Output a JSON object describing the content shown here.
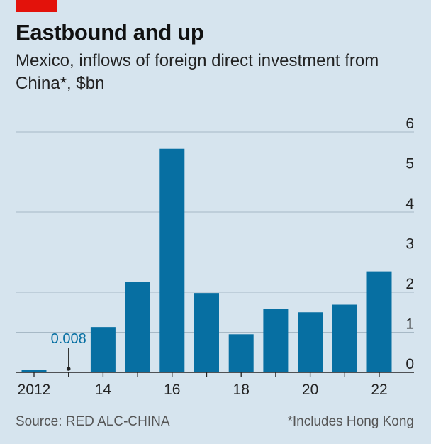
{
  "header": {
    "title": "Eastbound and up",
    "subtitle": "Mexico, inflows of foreign direct investment from China*, $bn"
  },
  "footer": {
    "source": "Source: RED ALC-CHINA",
    "note": "*Includes Hong Kong"
  },
  "colors": {
    "bar": "#076fa2",
    "grid": "#a7b9c6",
    "accent": "#e3120b",
    "background": "#d6e4ee"
  },
  "chart_data": {
    "type": "bar",
    "title": "Eastbound and up",
    "subtitle": "Mexico, inflows of foreign direct investment from China*, $bn",
    "categories": [
      "2012",
      "2013",
      "2014",
      "2015",
      "2016",
      "2017",
      "2018",
      "2019",
      "2020",
      "2021",
      "2022"
    ],
    "x_tick_labels": [
      "2012",
      "",
      "14",
      "",
      "16",
      "",
      "18",
      "",
      "20",
      "",
      "22"
    ],
    "values": [
      0.07,
      0.008,
      1.13,
      2.26,
      5.58,
      1.98,
      0.95,
      1.58,
      1.5,
      1.69,
      2.52
    ],
    "annotation": {
      "category": "2013",
      "label": "0.008"
    },
    "ylim": [
      0,
      6
    ],
    "y_ticks": [
      0,
      1,
      2,
      3,
      4,
      5,
      6
    ],
    "y_axis_side": "right",
    "grid": true
  }
}
